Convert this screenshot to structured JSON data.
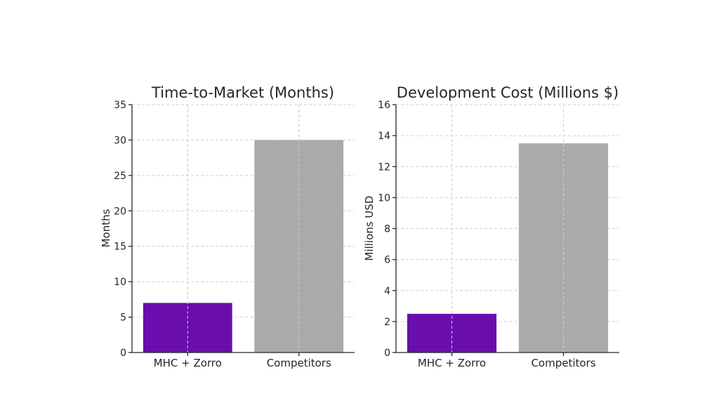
{
  "chart_data": [
    {
      "type": "bar",
      "title": "Time-to-Market (Months)",
      "ylabel": "Months",
      "xlabel": "",
      "categories": [
        "MHC + Zorro",
        "Competitors"
      ],
      "values": [
        7,
        30
      ],
      "colors": [
        "#6a0dad",
        "#aaaaaa"
      ],
      "ylim": [
        0,
        35
      ],
      "yticks": [
        0,
        5,
        10,
        15,
        20,
        25,
        30,
        35
      ],
      "grid": true
    },
    {
      "type": "bar",
      "title": "Development Cost (Millions $)",
      "ylabel": "Millions USD",
      "xlabel": "",
      "categories": [
        "MHC + Zorro",
        "Competitors"
      ],
      "values": [
        2.5,
        13.5
      ],
      "colors": [
        "#6a0dad",
        "#aaaaaa"
      ],
      "ylim": [
        0,
        16
      ],
      "yticks": [
        0,
        2,
        4,
        6,
        8,
        10,
        12,
        14,
        16
      ],
      "grid": true
    }
  ]
}
